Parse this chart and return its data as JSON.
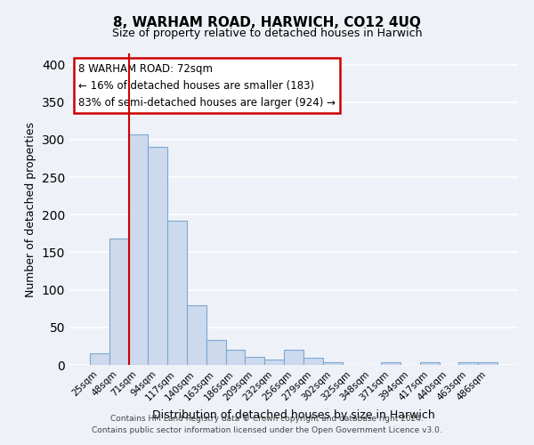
{
  "title": "8, WARHAM ROAD, HARWICH, CO12 4UQ",
  "subtitle": "Size of property relative to detached houses in Harwich",
  "xlabel": "Distribution of detached houses by size in Harwich",
  "ylabel": "Number of detached properties",
  "bar_labels": [
    "25sqm",
    "48sqm",
    "71sqm",
    "94sqm",
    "117sqm",
    "140sqm",
    "163sqm",
    "186sqm",
    "209sqm",
    "232sqm",
    "256sqm",
    "279sqm",
    "302sqm",
    "325sqm",
    "348sqm",
    "371sqm",
    "394sqm",
    "417sqm",
    "440sqm",
    "463sqm",
    "486sqm"
  ],
  "bar_values": [
    16,
    168,
    307,
    290,
    192,
    79,
    33,
    20,
    11,
    7,
    20,
    9,
    4,
    0,
    0,
    4,
    0,
    3,
    0,
    4,
    3
  ],
  "bar_color": "#cdd9ec",
  "bar_edge_color": "#7ba8d4",
  "vline_x": 2.0,
  "vline_color": "#cc0000",
  "ylim": [
    0,
    415
  ],
  "yticks": [
    0,
    50,
    100,
    150,
    200,
    250,
    300,
    350,
    400
  ],
  "annotation_title": "8 WARHAM ROAD: 72sqm",
  "annotation_line1": "← 16% of detached houses are smaller (183)",
  "annotation_line2": "83% of semi-detached houses are larger (924) →",
  "annotation_box_color": "#ffffff",
  "annotation_box_edge": "#cc0000",
  "footer1": "Contains HM Land Registry data © Crown copyright and database right 2024.",
  "footer2": "Contains public sector information licensed under the Open Government Licence v3.0.",
  "bg_color": "#eef2f8",
  "grid_color": "#d8dde8"
}
